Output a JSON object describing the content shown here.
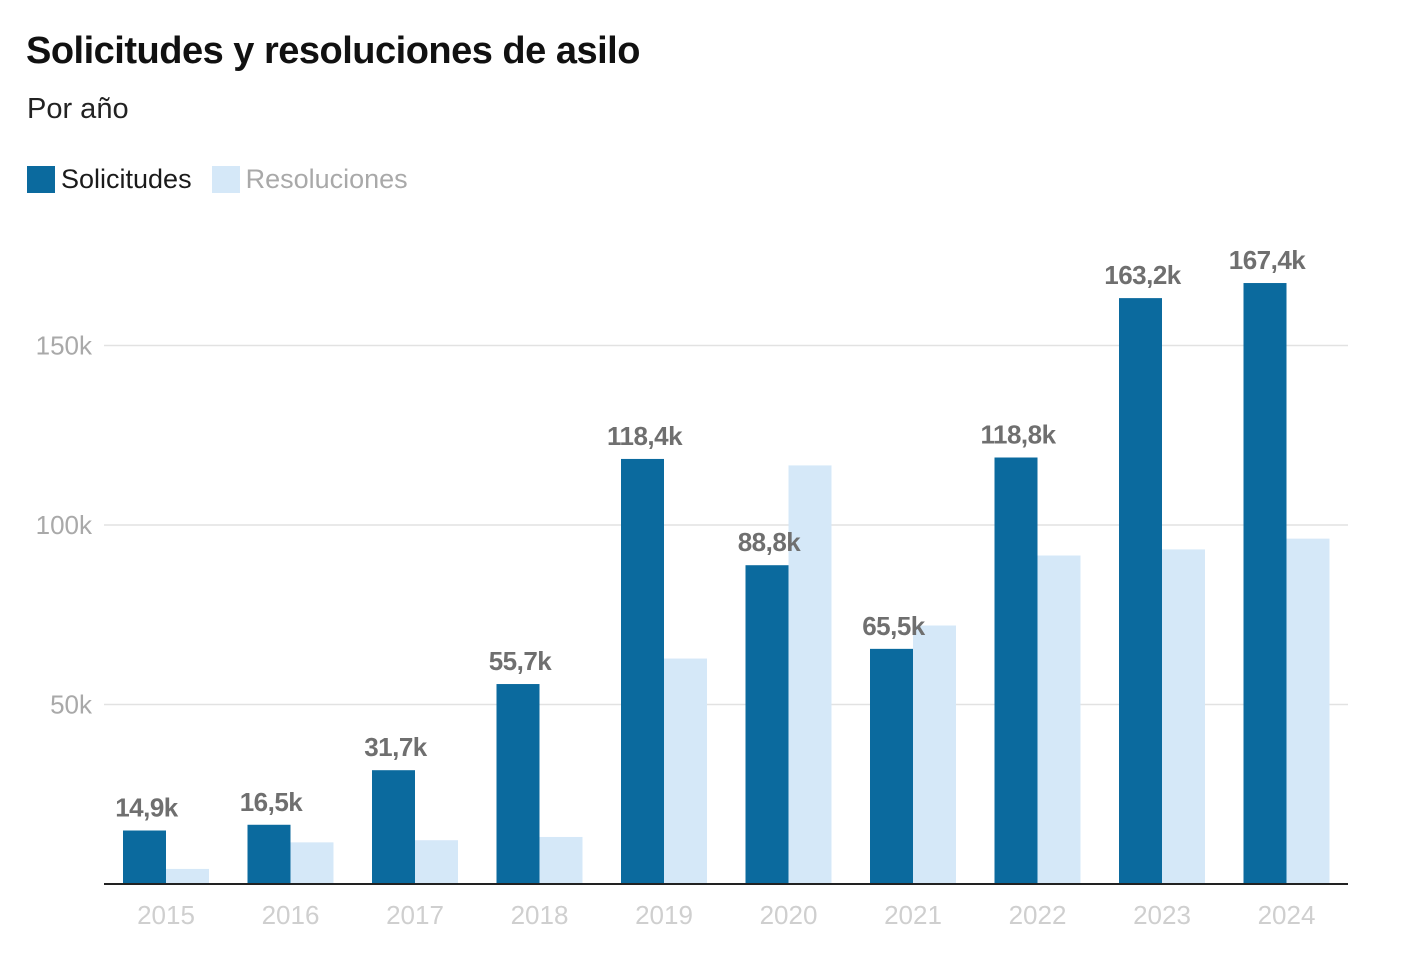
{
  "header": {
    "title": "Solicitudes y resoluciones de asilo",
    "subtitle": "Por año"
  },
  "legend": [
    {
      "label": "Solicitudes",
      "color": "#0b6a9e",
      "text_color": "#1a1a1a"
    },
    {
      "label": "Resoluciones",
      "color": "#d5e8f8",
      "text_color": "#a9a9a9"
    }
  ],
  "chart_data": {
    "type": "bar",
    "title": "Solicitudes y resoluciones de asilo",
    "subtitle": "Por año",
    "xlabel": "",
    "ylabel": "",
    "ylim": [
      0,
      175000
    ],
    "yticks": [
      50000,
      100000,
      150000
    ],
    "ytick_labels": [
      "50k",
      "100k",
      "150k"
    ],
    "grid": true,
    "legend_position": "top-left",
    "categories": [
      "2015",
      "2016",
      "2017",
      "2018",
      "2019",
      "2020",
      "2021",
      "2022",
      "2023",
      "2024"
    ],
    "series": [
      {
        "name": "Solicitudes",
        "color": "#0b6a9e",
        "values": [
          14900,
          16500,
          31700,
          55700,
          118400,
          88800,
          65500,
          118800,
          163200,
          167400
        ],
        "labels": [
          "14,9k",
          "16,5k",
          "31,7k",
          "55,7k",
          "118,4k",
          "88,8k",
          "65,5k",
          "118,8k",
          "163,2k",
          "167,4k"
        ]
      },
      {
        "name": "Resoluciones",
        "color": "#d5e8f8",
        "values": [
          4200,
          11600,
          12200,
          13100,
          62800,
          116600,
          72000,
          91500,
          93200,
          96200
        ]
      }
    ]
  }
}
